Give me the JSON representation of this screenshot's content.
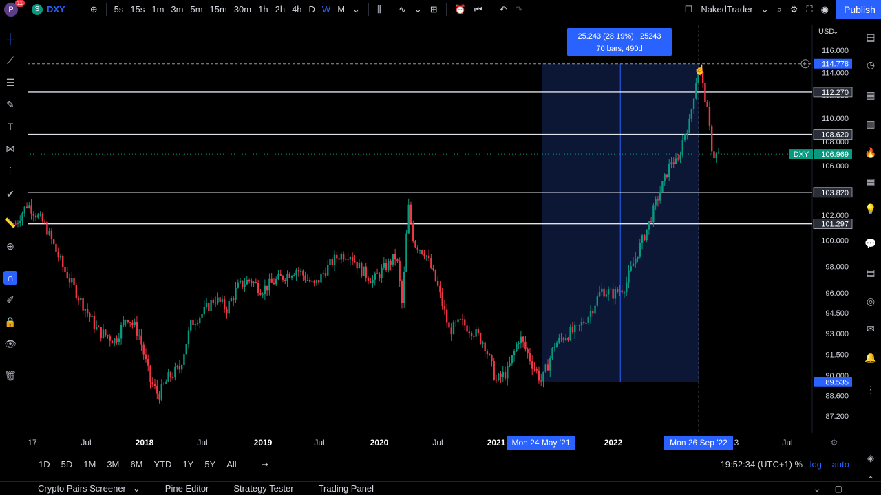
{
  "topbar": {
    "avatar_letter": "P",
    "notification_count": "11",
    "symbol_icon": "S",
    "symbol": "DXY",
    "intervals": [
      "5s",
      "15s",
      "1m",
      "3m",
      "5m",
      "15m",
      "30m",
      "1h",
      "2h",
      "4h",
      "D",
      "W",
      "M"
    ],
    "active_interval": "W",
    "layout_name": "NakedTrader",
    "publish_label": "Publish"
  },
  "chart_data": {
    "type": "candlestick",
    "symbol": "DXY",
    "currency": "USD",
    "last_price": 106.969,
    "scale": "log",
    "yticks": [
      116.0,
      114.0,
      112.0,
      110.0,
      108.0,
      106.0,
      102.0,
      100.0,
      98.0,
      96.0,
      94.5,
      93.0,
      91.5,
      90.0,
      88.6,
      87.2
    ],
    "ytick_labels": [
      "116.000",
      "114.000",
      "112.000",
      "110.000",
      "108.000",
      "106.000",
      "102.000",
      "100.000",
      "98.000",
      "96.000",
      "94.500",
      "93.000",
      "91.500",
      "90.000",
      "88.600",
      "87.200"
    ],
    "xticks": [
      "17",
      "Jul",
      "2018",
      "Jul",
      "2019",
      "Jul",
      "2020",
      "Jul",
      "2021",
      "2022",
      "3",
      "Jul"
    ],
    "horizontal_levels": [
      112.27,
      108.62,
      103.82,
      101.297
    ],
    "horizontal_level_labels": [
      "112.270",
      "108.620",
      "103.820",
      "101.297"
    ],
    "crosshair_price": "114.778",
    "range_low_label": "89.535",
    "last_price_label": "106.969",
    "range_measure": {
      "start_date": "Mon 24 May '21",
      "end_date": "Mon 26 Sep '22",
      "low": 89.535,
      "high": 114.778,
      "change_text": "25.243 (28.19%) , 25243",
      "bars_text": "70 bars, 490d"
    },
    "price_path": [
      [
        2016.9,
        101.3
      ],
      [
        2017.0,
        102.9
      ],
      [
        2017.15,
        101.2
      ],
      [
        2017.3,
        98.0
      ],
      [
        2017.45,
        95.5
      ],
      [
        2017.6,
        93.2
      ],
      [
        2017.75,
        92.5
      ],
      [
        2017.85,
        94.3
      ],
      [
        2017.95,
        93.0
      ],
      [
        2018.05,
        89.6
      ],
      [
        2018.12,
        88.6
      ],
      [
        2018.2,
        89.8
      ],
      [
        2018.3,
        90.5
      ],
      [
        2018.4,
        93.8
      ],
      [
        2018.5,
        94.5
      ],
      [
        2018.6,
        95.6
      ],
      [
        2018.7,
        94.8
      ],
      [
        2018.8,
        96.5
      ],
      [
        2018.9,
        97.0
      ],
      [
        2019.0,
        96.2
      ],
      [
        2019.1,
        96.8
      ],
      [
        2019.2,
        97.3
      ],
      [
        2019.3,
        97.8
      ],
      [
        2019.45,
        96.5
      ],
      [
        2019.55,
        97.8
      ],
      [
        2019.65,
        98.8
      ],
      [
        2019.75,
        99.0
      ],
      [
        2019.85,
        97.7
      ],
      [
        2019.95,
        96.9
      ],
      [
        2020.05,
        97.9
      ],
      [
        2020.15,
        98.8
      ],
      [
        2020.2,
        94.9
      ],
      [
        2020.25,
        102.8
      ],
      [
        2020.3,
        99.8
      ],
      [
        2020.4,
        99.0
      ],
      [
        2020.5,
        96.5
      ],
      [
        2020.6,
        93.2
      ],
      [
        2020.7,
        93.8
      ],
      [
        2020.8,
        93.2
      ],
      [
        2020.9,
        92.3
      ],
      [
        2021.0,
        89.6
      ],
      [
        2021.1,
        90.3
      ],
      [
        2021.2,
        92.8
      ],
      [
        2021.3,
        91.0
      ],
      [
        2021.39,
        89.535
      ],
      [
        2021.5,
        92.2
      ],
      [
        2021.6,
        92.9
      ],
      [
        2021.7,
        93.3
      ],
      [
        2021.8,
        94.5
      ],
      [
        2021.9,
        96.2
      ],
      [
        2022.0,
        95.9
      ],
      [
        2022.1,
        96.5
      ],
      [
        2022.2,
        98.9
      ],
      [
        2022.3,
        101.2
      ],
      [
        2022.4,
        103.9
      ],
      [
        2022.5,
        106.5
      ],
      [
        2022.55,
        106.1
      ],
      [
        2022.6,
        108.5
      ],
      [
        2022.65,
        109.6
      ],
      [
        2022.73,
        114.778
      ],
      [
        2022.8,
        110.8
      ],
      [
        2022.85,
        106.8
      ],
      [
        2022.9,
        106.969
      ]
    ]
  },
  "bottombar": {
    "ranges": [
      "1D",
      "5D",
      "1M",
      "3M",
      "6M",
      "YTD",
      "1Y",
      "5Y",
      "All"
    ],
    "clock": "19:52:34 (UTC+1)",
    "percent_label": "%",
    "log_label": "log",
    "auto_label": "auto"
  },
  "panels": [
    "Crypto Pairs Screener",
    "Pine Editor",
    "Strategy Tester",
    "Trading Panel"
  ],
  "icons": {
    "add": "plus-circle-icon",
    "indicators": "indicator-icon",
    "search": "search-icon",
    "settings": "gear-icon",
    "fullscreen": "fullscreen-icon",
    "snapshot": "camera-icon"
  }
}
